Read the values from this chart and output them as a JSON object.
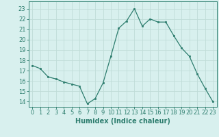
{
  "x": [
    0,
    1,
    2,
    3,
    4,
    5,
    6,
    7,
    8,
    9,
    10,
    11,
    12,
    13,
    14,
    15,
    16,
    17,
    18,
    19,
    20,
    21,
    22,
    23
  ],
  "y": [
    17.5,
    17.2,
    16.4,
    16.2,
    15.9,
    15.7,
    15.5,
    13.8,
    14.3,
    15.8,
    18.4,
    21.1,
    21.8,
    23.0,
    21.3,
    22.0,
    21.7,
    21.7,
    20.4,
    19.2,
    18.4,
    16.7,
    15.3,
    14.0
  ],
  "line_color": "#2d7d6e",
  "marker": "s",
  "marker_size": 2.0,
  "bg_color": "#d8f0ee",
  "grid_color": "#c0dcd8",
  "xlabel": "Humidex (Indice chaleur)",
  "ylabel_ticks": [
    14,
    15,
    16,
    17,
    18,
    19,
    20,
    21,
    22,
    23
  ],
  "xlim": [
    -0.5,
    23.5
  ],
  "ylim": [
    13.5,
    23.7
  ],
  "xticks": [
    0,
    1,
    2,
    3,
    4,
    5,
    6,
    7,
    8,
    9,
    10,
    11,
    12,
    13,
    14,
    15,
    16,
    17,
    18,
    19,
    20,
    21,
    22,
    23
  ],
  "axis_color": "#2d7d6e",
  "tick_color": "#2d7d6e",
  "label_fontsize": 7.0,
  "tick_fontsize": 6.0
}
